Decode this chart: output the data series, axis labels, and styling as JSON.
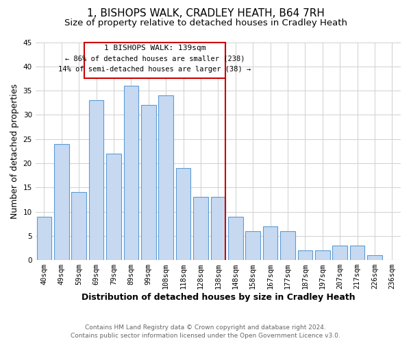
{
  "title": "1, BISHOPS WALK, CRADLEY HEATH, B64 7RH",
  "subtitle": "Size of property relative to detached houses in Cradley Heath",
  "xlabel": "Distribution of detached houses by size in Cradley Heath",
  "ylabel": "Number of detached properties",
  "footer_line1": "Contains HM Land Registry data © Crown copyright and database right 2024.",
  "footer_line2": "Contains public sector information licensed under the Open Government Licence v3.0.",
  "bar_labels": [
    "40sqm",
    "49sqm",
    "59sqm",
    "69sqm",
    "79sqm",
    "89sqm",
    "99sqm",
    "108sqm",
    "118sqm",
    "128sqm",
    "138sqm",
    "148sqm",
    "158sqm",
    "167sqm",
    "177sqm",
    "187sqm",
    "197sqm",
    "207sqm",
    "217sqm",
    "226sqm",
    "236sqm"
  ],
  "bar_values": [
    9,
    24,
    14,
    33,
    22,
    36,
    32,
    34,
    19,
    13,
    13,
    9,
    6,
    7,
    6,
    2,
    2,
    3,
    3,
    1,
    0
  ],
  "bar_color": "#c6d9f1",
  "bar_edge_color": "#5b9bd5",
  "ylim": [
    0,
    45
  ],
  "yticks": [
    0,
    5,
    10,
    15,
    20,
    25,
    30,
    35,
    40,
    45
  ],
  "vline_x_index": 10,
  "vline_color": "#cc0000",
  "annotation_title": "1 BISHOPS WALK: 139sqm",
  "annotation_line1": "← 86% of detached houses are smaller (238)",
  "annotation_line2": "14% of semi-detached houses are larger (38) →",
  "annotation_box_color": "#cc0000",
  "bg_color": "#ffffff",
  "grid_color": "#d0d0d0",
  "title_fontsize": 11,
  "subtitle_fontsize": 9.5,
  "label_fontsize": 9,
  "tick_fontsize": 7.5,
  "footer_fontsize": 6.5
}
